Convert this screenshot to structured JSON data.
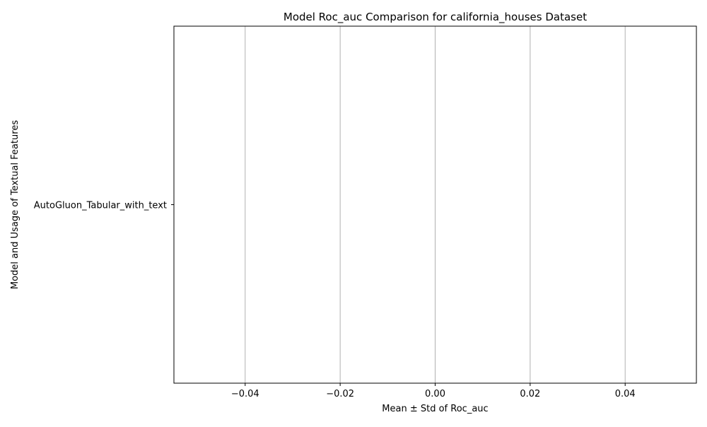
{
  "chart_data": {
    "type": "bar",
    "orientation": "horizontal",
    "title": "Model Roc_auc Comparison for california_houses Dataset",
    "xlabel": "Mean ± Std of Roc_auc",
    "ylabel": "Model and Usage of Textual Features",
    "categories": [
      "AutoGluon_Tabular_with_text"
    ],
    "values": [
      0
    ],
    "xlim": [
      -0.055,
      0.055
    ],
    "xticks": [
      -0.04,
      -0.02,
      0.0,
      0.02,
      0.04
    ],
    "xtick_labels": [
      "−0.04",
      "−0.02",
      "0.00",
      "0.02",
      "0.04"
    ],
    "grid": {
      "x": true,
      "y": false
    },
    "colors": {
      "grid": "#b0b0b0",
      "axis": "#000000"
    }
  }
}
